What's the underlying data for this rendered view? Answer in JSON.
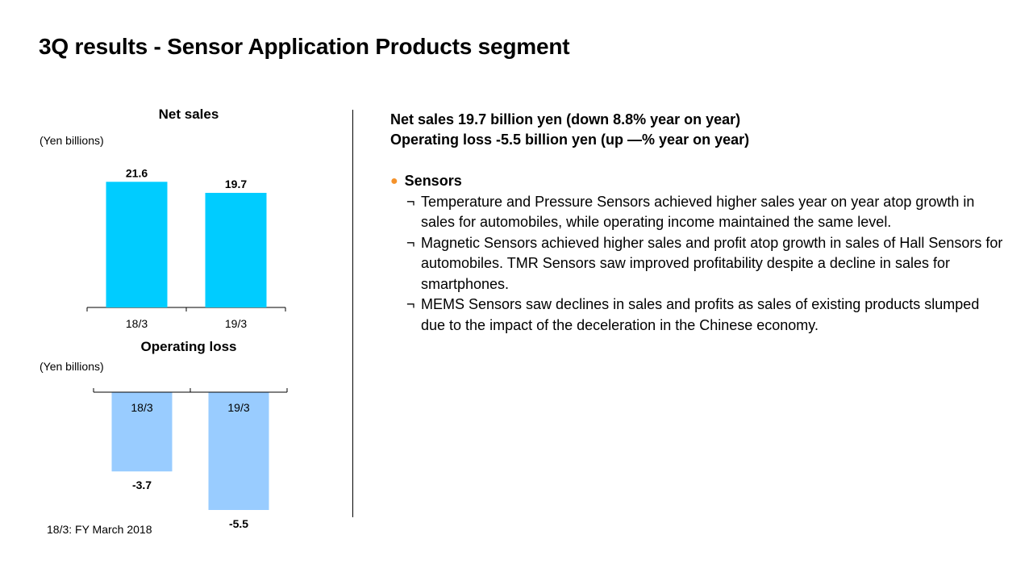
{
  "slide": {
    "title": "3Q results - Sensor Application Products segment",
    "footnote": "18/3: FY March 2018"
  },
  "chart_data": [
    {
      "type": "bar",
      "title": "Net sales",
      "ylabel": "(Yen billions)",
      "categories": [
        "18/3",
        "19/3"
      ],
      "values": [
        21.6,
        19.7
      ],
      "value_labels": [
        "21.6",
        "19.7"
      ],
      "color": "#00ccff",
      "ylim": [
        0,
        24
      ]
    },
    {
      "type": "bar",
      "title": "Operating loss",
      "ylabel": "(Yen billions)",
      "categories": [
        "18/3",
        "19/3"
      ],
      "values": [
        -3.7,
        -5.5
      ],
      "value_labels": [
        "-3.7",
        "-5.5"
      ],
      "color": "#99ccff",
      "ylim": [
        -5.5,
        0
      ]
    }
  ],
  "summary": {
    "headline_1": "Net sales 19.7 billion yen (down 8.8% year on year)",
    "headline_2": "Operating loss -5.5 billion yen (up —% year on year)",
    "section_bullet": "●",
    "section_title": "Sensors",
    "bullet_mark": "¬",
    "bullets": [
      "Temperature and Pressure Sensors achieved higher sales year on year atop growth in sales for automobiles, while operating income maintained the same level.",
      "Magnetic Sensors achieved higher sales and profit atop growth in sales of Hall Sensors for automobiles. TMR Sensors saw improved profitability despite a decline in sales for smartphones.",
      "MEMS Sensors saw declines in sales and profits as sales of existing products slumped due to the impact of the deceleration in the Chinese economy."
    ],
    "accent_color": "#f4922b"
  }
}
